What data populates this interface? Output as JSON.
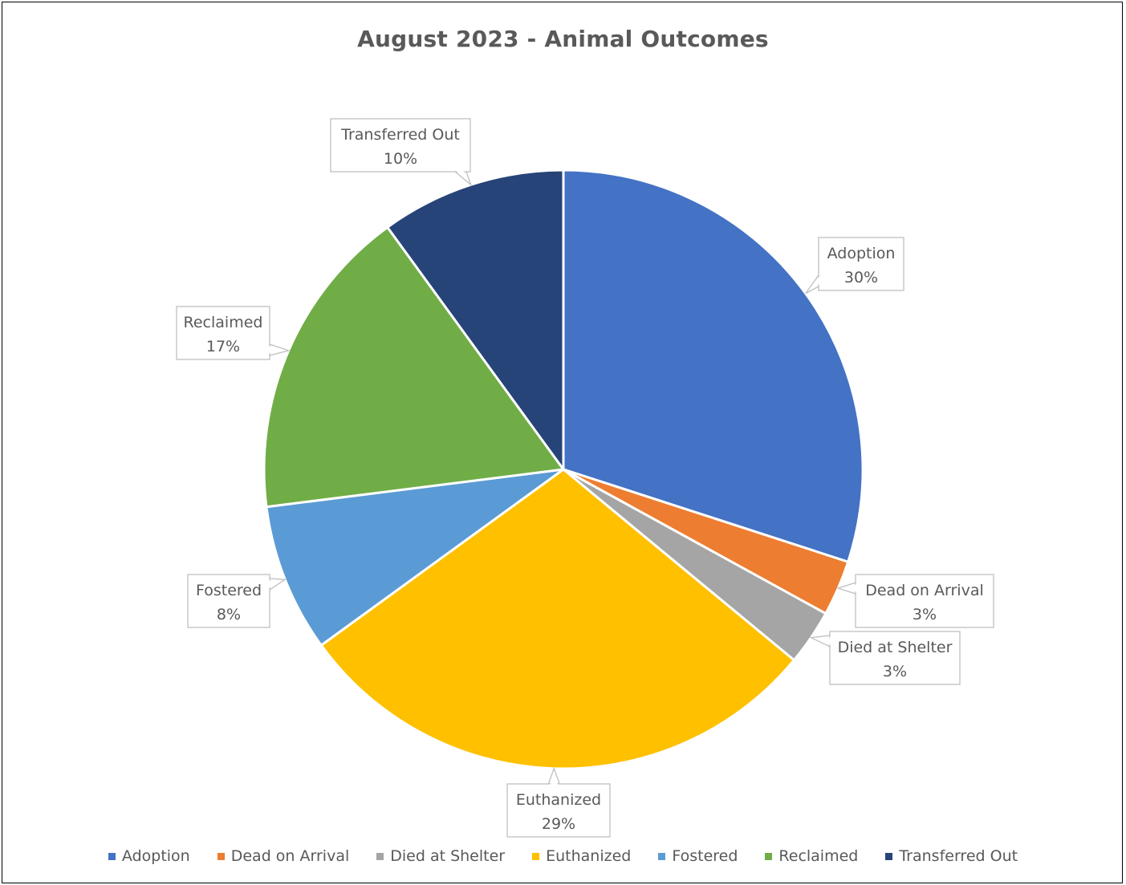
{
  "chart_data": {
    "type": "pie",
    "title": "August 2023 - Animal Outcomes",
    "categories": [
      "Adoption",
      "Dead on Arrival",
      "Died at Shelter",
      "Euthanized",
      "Fostered",
      "Reclaimed",
      "Transferred Out"
    ],
    "values": [
      30,
      3,
      3,
      29,
      8,
      17,
      10
    ],
    "value_labels": [
      "30%",
      "3%",
      "3%",
      "29%",
      "8%",
      "17%",
      "10%"
    ],
    "unit": "%",
    "colors": [
      "#4472C4",
      "#ED7D31",
      "#A5A5A5",
      "#FFC000",
      "#5B9BD5",
      "#70AD47",
      "#264478"
    ],
    "data_labels": "callouts with category name and percentage",
    "legend_position": "bottom",
    "legend": [
      "Adoption",
      "Dead on Arrival",
      "Died at Shelter",
      "Euthanized",
      "Fostered",
      "Reclaimed",
      "Transferred Out"
    ],
    "start_angle": "12 o'clock, clockwise"
  }
}
